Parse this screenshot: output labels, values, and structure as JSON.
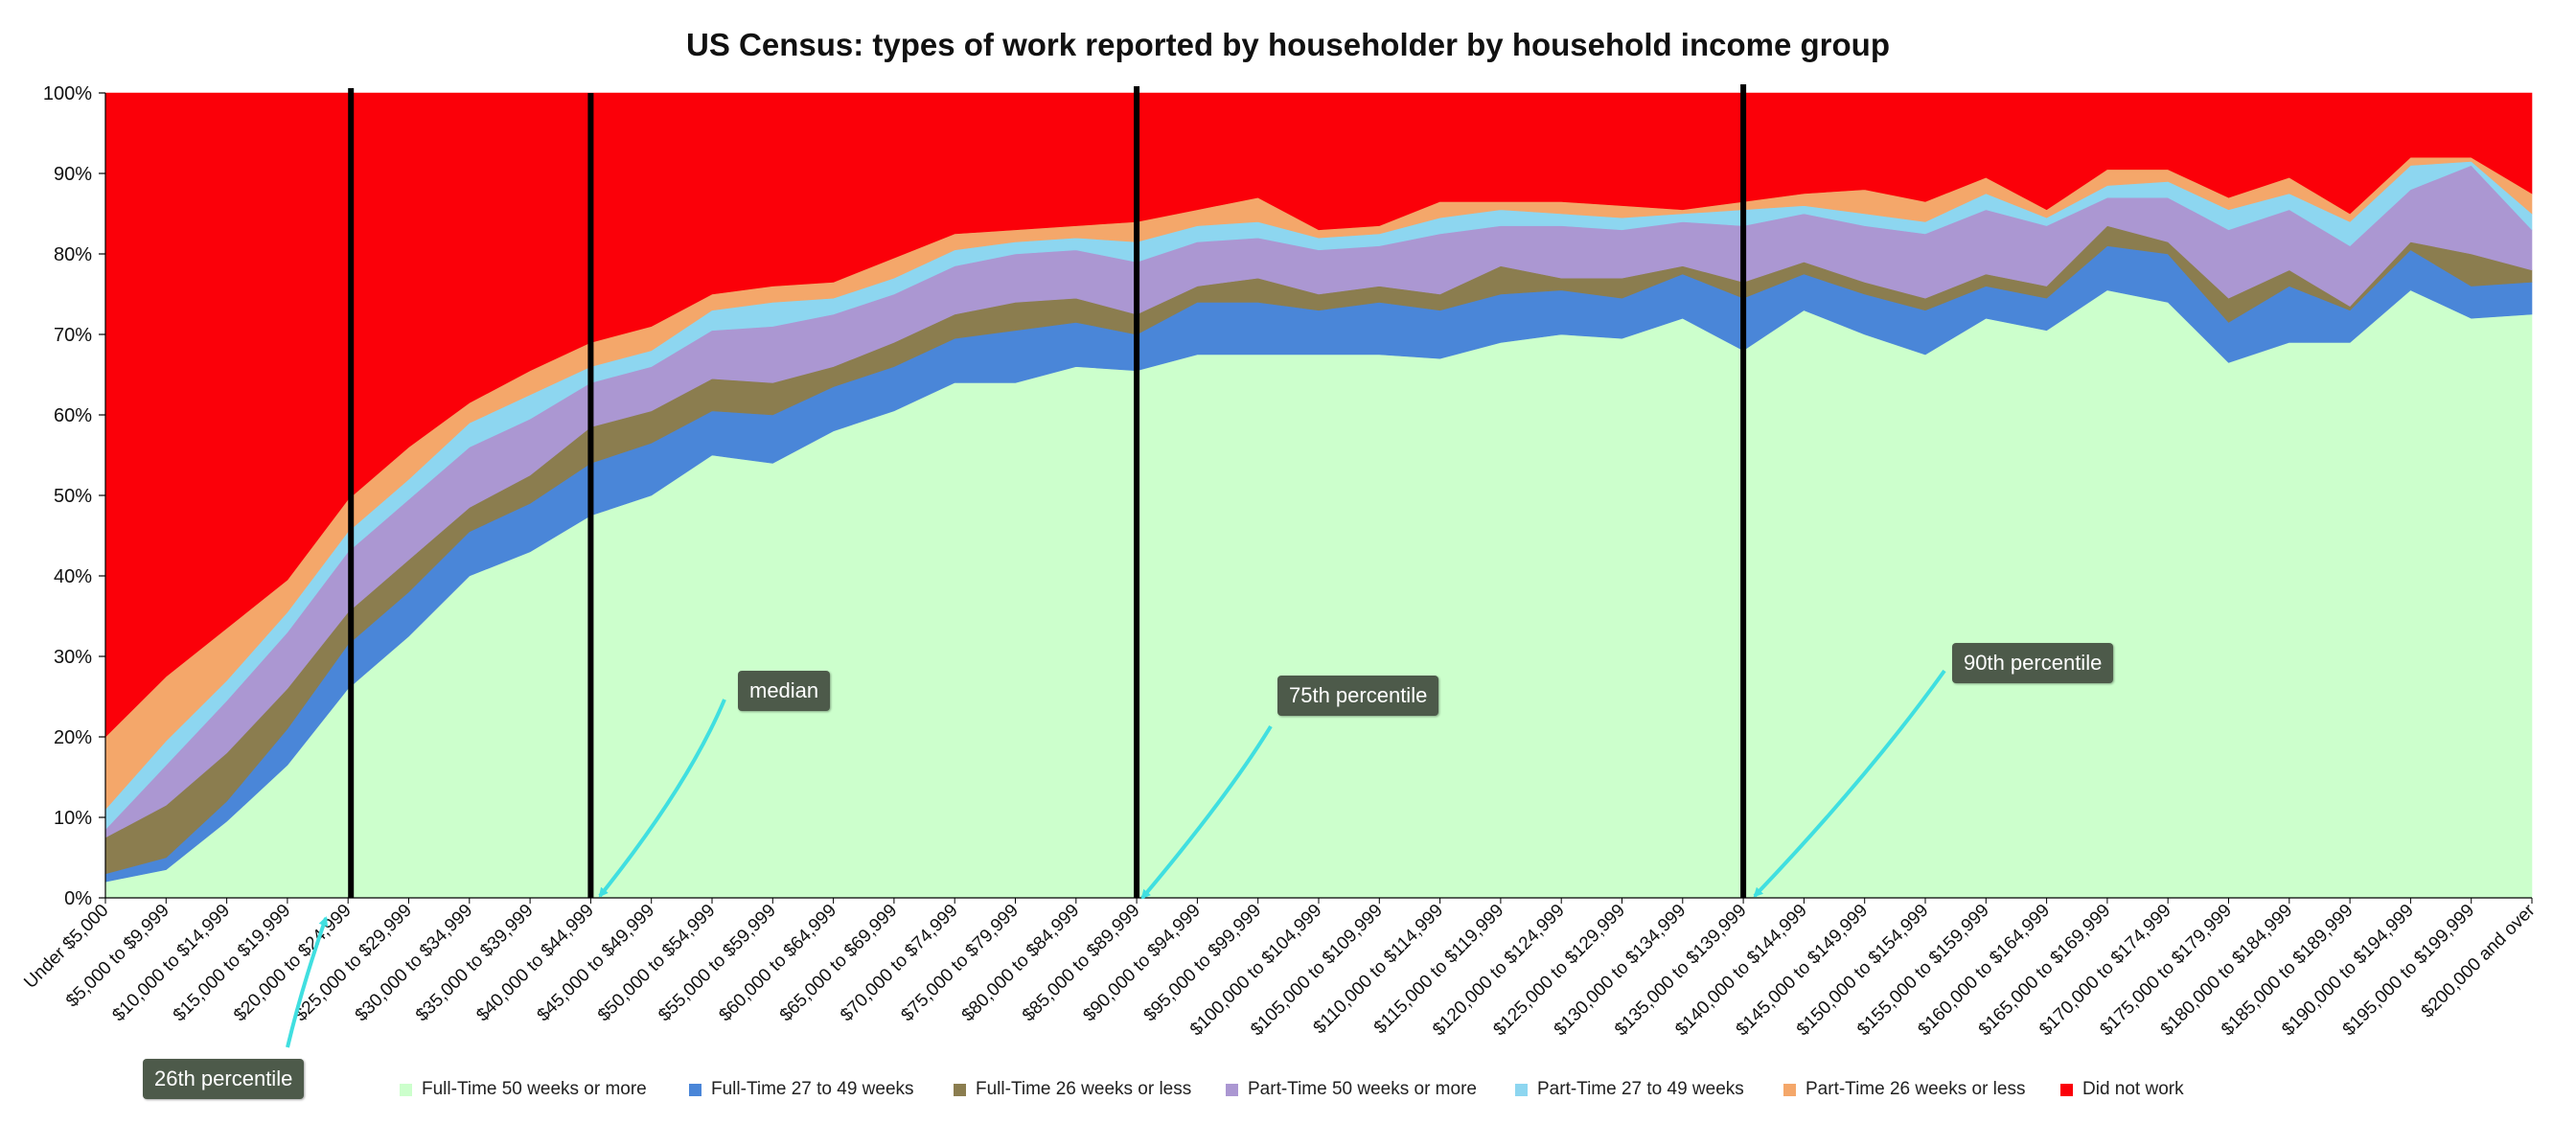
{
  "chart_data": {
    "type": "area",
    "stacked": true,
    "title": "US Census: types of work reported by householder by household income group",
    "xlabel": "",
    "ylabel": "",
    "ylim": [
      0,
      100
    ],
    "y_ticks": [
      "0%",
      "10%",
      "20%",
      "30%",
      "40%",
      "50%",
      "60%",
      "70%",
      "80%",
      "90%",
      "100%"
    ],
    "grid": false,
    "legend_position": "bottom",
    "categories": [
      "Under $5,000",
      "$5,000 to $9,999",
      "$10,000 to $14,999",
      "$15,000 to $19,999",
      "$20,000 to $24,999",
      "$25,000 to $29,999",
      "$30,000 to $34,999",
      "$35,000 to $39,999",
      "$40,000 to $44,999",
      "$45,000 to $49,999",
      "$50,000 to $54,999",
      "$55,000 to $59,999",
      "$60,000 to $64,999",
      "$65,000 to $69,999",
      "$70,000 to $74,999",
      "$75,000 to $79,999",
      "$80,000 to $84,999",
      "$85,000 to $89,999",
      "$90,000 to $94,999",
      "$95,000 to $99,999",
      "$100,000 to $104,999",
      "$105,000 to $109,999",
      "$110,000 to $114,999",
      "$115,000 to $119,999",
      "$120,000 to $124,999",
      "$125,000 to $129,999",
      "$130,000 to $134,999",
      "$135,000 to $139,999",
      "$140,000 to $144,999",
      "$145,000 to $149,999",
      "$150,000 to $154,999",
      "$155,000 to $159,999",
      "$160,000 to $164,999",
      "$165,000 to $169,999",
      "$170,000 to $174,999",
      "$175,000 to $179,999",
      "$180,000 to $184,999",
      "$185,000 to $189,999",
      "$190,000 to $194,999",
      "$195,000 to $199,999",
      "$200,000 and over"
    ],
    "series": [
      {
        "name": "Full-Time 50 weeks or more",
        "color": "#ccffcc",
        "values": [
          2,
          3.5,
          9.5,
          16.5,
          26,
          32.5,
          40,
          43,
          47.5,
          50,
          55,
          54,
          58,
          60.5,
          64,
          64,
          66,
          65.5,
          67.5,
          67.5,
          67.5,
          67.5,
          67,
          69,
          70,
          69.5,
          72,
          68,
          73,
          70,
          67.5,
          72,
          70.5,
          75.5,
          74,
          66.5,
          69,
          69,
          75.5,
          72,
          72.5
        ]
      },
      {
        "name": "Full-Time 27 to 49 weeks",
        "color": "#4a86d8",
        "values": [
          1,
          1.5,
          2.5,
          4.5,
          5.5,
          5.5,
          5.5,
          6,
          6.5,
          6.5,
          5.5,
          6,
          5.5,
          5.5,
          5.5,
          6.5,
          5.5,
          4.5,
          6.5,
          6.5,
          5.5,
          6.5,
          6,
          6,
          5.5,
          5,
          5.5,
          6.5,
          4.5,
          5,
          5.5,
          4,
          4,
          5.5,
          6,
          5,
          7,
          4,
          5,
          4,
          4
        ]
      },
      {
        "name": "Full-Time 26 weeks or less",
        "color": "#8b7d4f",
        "values": [
          4.5,
          6.5,
          6,
          5,
          4,
          4,
          3,
          3.5,
          4.5,
          4,
          4,
          4,
          2.5,
          3,
          3,
          3.5,
          3,
          2.5,
          2,
          3,
          2,
          2,
          2,
          3.5,
          1.5,
          2.5,
          1,
          2,
          1.5,
          1.5,
          1.5,
          1.5,
          1.5,
          2.5,
          1.5,
          3,
          2,
          0.5,
          1,
          4,
          1.5
        ]
      },
      {
        "name": "Part-Time 50 weeks or more",
        "color": "#ab97d2",
        "values": [
          1,
          5,
          6.5,
          7,
          7.5,
          7.5,
          7.5,
          7,
          5.5,
          5.5,
          6,
          7,
          6.5,
          6,
          6,
          6,
          6,
          6.5,
          5.5,
          5,
          5.5,
          5,
          7.5,
          5,
          6.5,
          6,
          5.5,
          7,
          6,
          7,
          8,
          8,
          7.5,
          3.5,
          5.5,
          8.5,
          7.5,
          7.5,
          6.5,
          11,
          5
        ]
      },
      {
        "name": "Part-Time 27 to 49 weeks",
        "color": "#8dd6f0",
        "values": [
          2.5,
          3,
          2.5,
          2.5,
          2.5,
          2.5,
          3,
          3,
          2,
          2,
          2.5,
          3,
          2,
          2,
          2,
          1.5,
          1.5,
          2.5,
          2,
          2,
          1.5,
          1.5,
          2,
          2,
          1.5,
          1.5,
          1,
          2,
          1,
          1.5,
          1.5,
          2,
          1,
          1.5,
          2,
          2.5,
          2,
          3,
          3,
          0.5,
          2
        ]
      },
      {
        "name": "Part-Time 26 weeks or less",
        "color": "#f4a76a",
        "values": [
          9,
          8,
          6.5,
          4,
          4,
          4,
          2.5,
          3,
          3,
          3,
          2,
          2,
          2,
          2.5,
          2,
          1.5,
          1.5,
          2.5,
          2,
          3,
          1,
          1,
          2,
          1,
          1.5,
          1.5,
          0.5,
          1,
          1.5,
          3,
          2.5,
          2,
          1,
          2,
          1.5,
          1.5,
          2,
          1,
          1,
          0.5,
          2.5
        ]
      },
      {
        "name": "Did not work",
        "color": "#fb0009",
        "values": [
          80,
          72.5,
          66.5,
          60.5,
          50.5,
          44,
          38.5,
          34.5,
          31,
          29,
          25,
          24,
          23.5,
          20.5,
          17.5,
          17,
          16.5,
          16,
          14.5,
          13,
          17,
          16.5,
          13.5,
          13.5,
          13.5,
          13.5,
          14.5,
          13.5,
          12.5,
          12,
          13,
          10.5,
          14.5,
          10.5,
          9.5,
          14,
          10.5,
          15,
          8,
          8,
          12.5
        ]
      }
    ],
    "markers": [
      {
        "label": "26th percentile",
        "after_category": "$20,000 to $24,999"
      },
      {
        "label": "median",
        "after_category": "$40,000 to $44,999"
      },
      {
        "label": "75th percentile",
        "after_category": "$85,000 to $89,999"
      },
      {
        "label": "90th percentile",
        "after_category": "$135,000 to $139,999"
      }
    ]
  }
}
